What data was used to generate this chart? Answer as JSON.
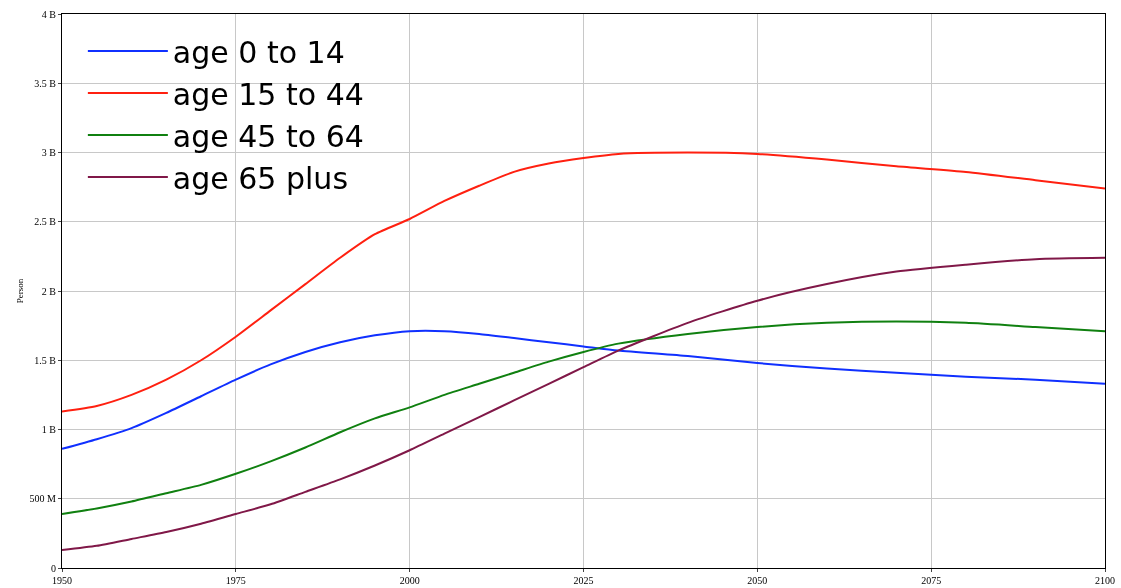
{
  "chart_data": {
    "type": "line",
    "ylabel": "Person",
    "x": [
      1950,
      1955,
      1960,
      1965,
      1970,
      1975,
      1980,
      1985,
      1990,
      1995,
      2000,
      2005,
      2010,
      2015,
      2020,
      2025,
      2030,
      2040,
      2050,
      2060,
      2070,
      2080,
      2090,
      2100
    ],
    "series": [
      {
        "name": "age 0 to 14",
        "color": "#1030ff",
        "values": [
          860000000,
          930000000,
          1010000000,
          1120000000,
          1240000000,
          1360000000,
          1470000000,
          1560000000,
          1630000000,
          1680000000,
          1710000000,
          1710000000,
          1690000000,
          1660000000,
          1630000000,
          1600000000,
          1570000000,
          1530000000,
          1480000000,
          1440000000,
          1410000000,
          1380000000,
          1360000000,
          1330000000
        ]
      },
      {
        "name": "age 15 to 44",
        "color": "#ff2010",
        "values": [
          1130000000,
          1170000000,
          1250000000,
          1360000000,
          1500000000,
          1670000000,
          1860000000,
          2050000000,
          2240000000,
          2410000000,
          2520000000,
          2650000000,
          2760000000,
          2860000000,
          2920000000,
          2960000000,
          2990000000,
          3000000000,
          2990000000,
          2950000000,
          2900000000,
          2860000000,
          2800000000,
          2740000000
        ]
      },
      {
        "name": "age 45 to 64",
        "color": "#108010",
        "values": [
          390000000,
          430000000,
          480000000,
          540000000,
          600000000,
          680000000,
          770000000,
          870000000,
          980000000,
          1080000000,
          1160000000,
          1250000000,
          1330000000,
          1410000000,
          1490000000,
          1560000000,
          1620000000,
          1690000000,
          1740000000,
          1770000000,
          1780000000,
          1770000000,
          1740000000,
          1710000000
        ]
      },
      {
        "name": "age 65 plus",
        "color": "#801848",
        "values": [
          130000000,
          160000000,
          210000000,
          260000000,
          320000000,
          390000000,
          460000000,
          550000000,
          640000000,
          740000000,
          850000000,
          970000000,
          1090000000,
          1210000000,
          1330000000,
          1450000000,
          1570000000,
          1770000000,
          1930000000,
          2050000000,
          2140000000,
          2190000000,
          2230000000,
          2240000000
        ]
      }
    ],
    "xlim": [
      1950,
      2100
    ],
    "xticks": [
      1950,
      1975,
      2000,
      2025,
      2050,
      2075,
      2100
    ],
    "ylim": [
      0,
      4000000000
    ],
    "yticks": [
      0,
      {
        "value": 500000000,
        "label": "500 M"
      },
      {
        "value": 1000000000,
        "label": "1 B"
      },
      {
        "value": 1500000000,
        "label": "1.5 B"
      },
      {
        "value": 2000000000,
        "label": "2 B"
      },
      {
        "value": 2500000000,
        "label": "2.5 B"
      },
      {
        "value": 3000000000,
        "label": "3 B"
      },
      {
        "value": 3500000000,
        "label": "3.5 B"
      },
      {
        "value": 4000000000,
        "label": "4 B"
      }
    ],
    "grid": true,
    "legend": "top left",
    "marker": "none",
    "line_style": "solid"
  }
}
